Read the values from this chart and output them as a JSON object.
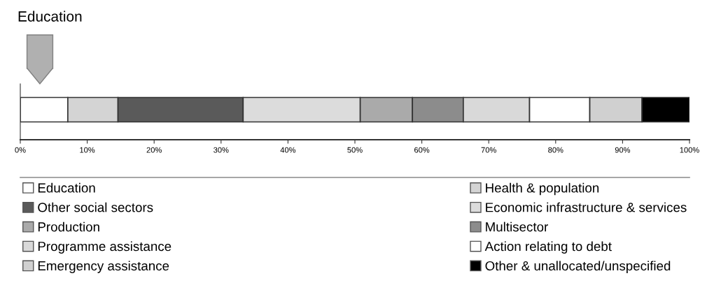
{
  "chart_data": {
    "type": "bar",
    "orientation": "horizontal",
    "stacked": true,
    "categories": [
      null
    ],
    "series": [
      {
        "name": "Education",
        "color": "#ffffff",
        "values": [
          7.1
        ]
      },
      {
        "name": "Health & population",
        "color": "#d4d4d4",
        "values": [
          7.5
        ]
      },
      {
        "name": "Other social sectors",
        "color": "#5a5a5a",
        "values": [
          18.7
        ]
      },
      {
        "name": "Economic infrastructure & services",
        "color": "#dcdcdc",
        "values": [
          17.5
        ]
      },
      {
        "name": "Production",
        "color": "#aaaaaa",
        "values": [
          7.8
        ]
      },
      {
        "name": "Multisector",
        "color": "#8c8c8c",
        "values": [
          7.6
        ]
      },
      {
        "name": "Programme assistance",
        "color": "#d9d9d9",
        "values": [
          9.9
        ]
      },
      {
        "name": "Action relating to debt",
        "color": "#ffffff",
        "values": [
          9.0
        ]
      },
      {
        "name": "Emergency assistance",
        "color": "#d0d0d0",
        "values": [
          7.8
        ]
      },
      {
        "name": "Other & unallocated/unspecified",
        "color": "#000000",
        "values": [
          7.1
        ]
      }
    ],
    "xlim": [
      0,
      100
    ],
    "xticks": [
      {
        "value": 0,
        "label": "0%"
      },
      {
        "value": 10,
        "label": "10%"
      },
      {
        "value": 20,
        "label": "20%"
      },
      {
        "value": 30,
        "label": "30%"
      },
      {
        "value": 40,
        "label": "40%"
      },
      {
        "value": 50,
        "label": "50%"
      },
      {
        "value": 60,
        "label": "60%"
      },
      {
        "value": 70,
        "label": "70%"
      },
      {
        "value": 80,
        "label": "80%"
      },
      {
        "value": 90,
        "label": "90%"
      },
      {
        "value": 100,
        "label": "100%"
      }
    ],
    "tick_labels": "x",
    "grid": false,
    "legend": "bottom",
    "annotations": [
      "Education"
    ]
  }
}
